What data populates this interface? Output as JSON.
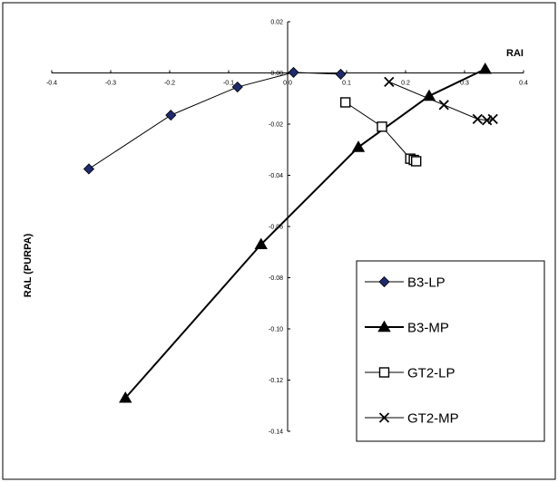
{
  "chart_data": {
    "type": "scatter",
    "title": "",
    "xlabel": "RAI",
    "ylabel": "RAL (PURPA)",
    "xlim": [
      -0.4,
      0.4
    ],
    "ylim": [
      -0.14,
      0.02
    ],
    "x_ticks": [
      "-0.4",
      "-0.3",
      "-0.2",
      "-0.1",
      "0.0",
      "0.1",
      "0.2",
      "0.3",
      "0.4"
    ],
    "y_ticks": [
      "0.02",
      "0.00",
      "-0.02",
      "-0.04",
      "-0.06",
      "-0.08",
      "-0.10",
      "-0.12",
      "-0.14"
    ],
    "grid": false,
    "legend_position": "lower-right",
    "series": [
      {
        "name": "B3-LP",
        "marker": "diamond",
        "color": "#1f2a6e",
        "line": "thin",
        "x": [
          -0.337,
          -0.198,
          -0.085,
          0.01,
          0.09
        ],
        "y": [
          -0.0375,
          -0.0165,
          -0.0055,
          0.0002,
          -0.0005
        ]
      },
      {
        "name": "B3-MP",
        "marker": "triangle",
        "color": "#000000",
        "line": "thick",
        "x": [
          -0.275,
          -0.045,
          0.12,
          0.24,
          0.335
        ],
        "y": [
          -0.127,
          -0.067,
          -0.029,
          -0.009,
          0.0015
        ]
      },
      {
        "name": "GT2-LP",
        "marker": "square",
        "color": "#000000",
        "line": "thin",
        "x": [
          0.098,
          0.16,
          0.208,
          0.214,
          0.218
        ],
        "y": [
          -0.0115,
          -0.021,
          -0.0335,
          -0.034,
          -0.0345
        ]
      },
      {
        "name": "GT2-MP",
        "marker": "x",
        "color": "#000000",
        "line": "thin",
        "x": [
          0.172,
          0.265,
          0.322,
          0.338,
          0.348
        ],
        "y": [
          -0.0035,
          -0.0125,
          -0.018,
          -0.0185,
          -0.018
        ]
      }
    ]
  }
}
